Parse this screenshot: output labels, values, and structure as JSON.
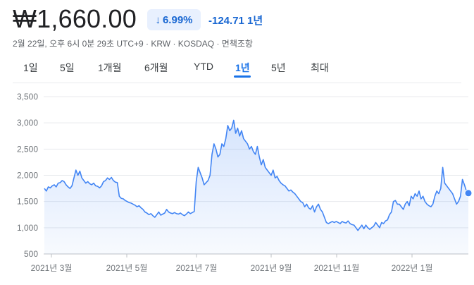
{
  "quote": {
    "price": "₩1,660.00",
    "change_pct": "6.99%",
    "change_abs": "-124.71",
    "change_period": "1년",
    "meta": "2월 22일, 오후 6시 0분 29초 UTC+9 · KRW · KOSDAQ · 면책조항"
  },
  "tabs": [
    {
      "label": "1일"
    },
    {
      "label": "5일"
    },
    {
      "label": "1개월"
    },
    {
      "label": "6개월"
    },
    {
      "label": "YTD"
    },
    {
      "label": "1년"
    },
    {
      "label": "5년"
    },
    {
      "label": "최대"
    }
  ],
  "active_tab": "1년",
  "colors": {
    "line": "#4285f4",
    "fill": "#e8f0fe",
    "accent_text": "#1967d2",
    "active_tab": "#1a73e8",
    "grid": "#e8eaed"
  },
  "icons": {
    "change_arrow": "arrow-down-icon"
  },
  "chart_data": {
    "type": "area",
    "title": "",
    "xlabel": "",
    "ylabel": "",
    "ylim": [
      500,
      3500
    ],
    "yticks": [
      500,
      1000,
      1500,
      2000,
      2500,
      3000,
      3500
    ],
    "ytick_labels": [
      "500",
      "1,000",
      "1,500",
      "2,000",
      "2,500",
      "3,000",
      "3,500"
    ],
    "xtick_labels": [
      "2021년 3월",
      "2021년 5월",
      "2021년 7월",
      "2021년 9월",
      "2021년 11월",
      "2022년 1월"
    ],
    "grid": true,
    "last_point_marker": true,
    "series": [
      {
        "values": [
          1750,
          1700,
          1780,
          1760,
          1800,
          1820,
          1780,
          1850,
          1860,
          1900,
          1880,
          1820,
          1780,
          1750,
          1800,
          1950,
          2100,
          2000,
          2080,
          1950,
          1900,
          1850,
          1880,
          1840,
          1820,
          1850,
          1800,
          1790,
          1760,
          1800,
          1880,
          1900,
          1950,
          1920,
          1960,
          1900,
          1870,
          1860,
          1600,
          1560,
          1550,
          1520,
          1500,
          1480,
          1470,
          1450,
          1430,
          1400,
          1420,
          1380,
          1350,
          1300,
          1280,
          1250,
          1270,
          1230,
          1200,
          1250,
          1300,
          1240,
          1260,
          1280,
          1350,
          1300,
          1280,
          1270,
          1290,
          1270,
          1260,
          1280,
          1250,
          1230,
          1260,
          1300,
          1270,
          1290,
          1310,
          1880,
          2150,
          2050,
          1950,
          1820,
          1860,
          1900,
          2000,
          2400,
          2600,
          2500,
          2350,
          2400,
          2600,
          2550,
          2700,
          2950,
          2850,
          2900,
          3050,
          2800,
          2900,
          2750,
          2850,
          2700,
          2650,
          2600,
          2500,
          2550,
          2450,
          2400,
          2550,
          2350,
          2200,
          2300,
          2150,
          2100,
          2050,
          2000,
          2100,
          1950,
          1980,
          1900,
          1850,
          1820,
          1800,
          1750,
          1700,
          1720,
          1680,
          1650,
          1600,
          1550,
          1500,
          1480,
          1400,
          1450,
          1380,
          1350,
          1420,
          1300,
          1400,
          1450,
          1350,
          1300,
          1200,
          1100,
          1080,
          1100,
          1120,
          1100,
          1120,
          1100,
          1080,
          1120,
          1100,
          1090,
          1130,
          1080,
          1060,
          1050,
          1000,
          950,
          1000,
          1050,
          980,
          1050,
          1000,
          970,
          1000,
          1030,
          1100,
          1050,
          1000,
          1100,
          1080,
          1130,
          1150,
          1250,
          1300,
          1500,
          1520,
          1450,
          1450,
          1400,
          1350,
          1450,
          1500,
          1420,
          1600,
          1550,
          1650,
          1600,
          1700,
          1550,
          1600,
          1500,
          1450,
          1420,
          1400,
          1450,
          1600,
          1700,
          1650,
          1750,
          2150,
          1850,
          1800,
          1750,
          1700,
          1650,
          1550,
          1450,
          1500,
          1600,
          1920,
          1820,
          1700,
          1660
        ]
      }
    ]
  }
}
